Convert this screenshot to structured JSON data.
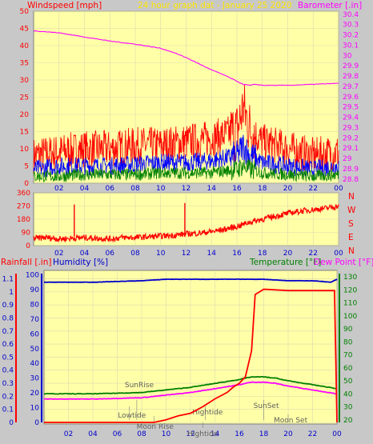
{
  "header": {
    "windspeed": "Windspeed [mph]",
    "date": "24 hour graph dat - January 25 2020",
    "barometer": "Barometer [.in]"
  },
  "mid": {
    "compass": [
      "N",
      "W",
      "S",
      "E",
      "N"
    ]
  },
  "bottom_header": {
    "rainfall": "Rainfall [.in]",
    "humidity": "Humidity [%]",
    "temperature": "Temperature [°F]",
    "dewpoint": "Dew Point [°F]"
  },
  "colors": {
    "background": "#c8c8c8",
    "plot": "#ffffa8",
    "windspeed": "#ff0000",
    "gust": "#0000ff",
    "avg": "#008000",
    "barometer": "#ff00ff",
    "humidity": "#0000cc",
    "temperature": "#008000",
    "dewpoint": "#ff00ff",
    "rain": "#ff0000"
  },
  "chart_data": [
    {
      "type": "line",
      "id": "wind",
      "xticks": [
        "02",
        "04",
        "06",
        "08",
        "10",
        "12",
        "14",
        "16",
        "18",
        "20",
        "22",
        "00"
      ],
      "left_ticks": [
        "50",
        "45",
        "40",
        "35",
        "30",
        "25",
        "20",
        "15",
        "10",
        "5",
        "0"
      ],
      "ylim": [
        0,
        50
      ],
      "right_ticks": [
        "30.4",
        "30.3",
        "30.2",
        "30.1",
        "30",
        "29.9",
        "29.8",
        "29.7",
        "29.6",
        "29.5",
        "29.4",
        "29.3",
        "29.2",
        "29.1",
        "29",
        "28.9",
        "28.8"
      ],
      "y2lim": [
        28.76,
        30.43
      ],
      "barometer": {
        "x": [
          0,
          2,
          4,
          6,
          8,
          10,
          11,
          12,
          13,
          14,
          15,
          16,
          16.5,
          17,
          17.5,
          18,
          20,
          22,
          24
        ],
        "y": [
          30.24,
          30.22,
          30.18,
          30.14,
          30.11,
          30.07,
          30.03,
          29.98,
          29.92,
          29.86,
          29.81,
          29.75,
          29.72,
          29.71,
          29.72,
          29.71,
          29.71,
          29.72,
          29.73
        ]
      },
      "series": [
        {
          "x": [
            0,
            2,
            4,
            6,
            8,
            10,
            12,
            14,
            16,
            16.5,
            17,
            18,
            20,
            22,
            24
          ],
          "y": [
            8,
            9,
            10,
            10,
            11,
            11,
            12,
            13,
            15,
            22,
            16,
            12,
            10,
            8,
            9
          ]
        },
        {
          "x": [
            0,
            2,
            4,
            6,
            8,
            10,
            12,
            14,
            16,
            16.5,
            17,
            18,
            20,
            22,
            24
          ],
          "y": [
            4,
            5,
            5,
            5,
            5.5,
            6,
            6,
            6.5,
            8,
            11,
            8,
            6,
            5,
            4,
            5
          ]
        },
        {
          "x": [
            0,
            2,
            4,
            6,
            8,
            10,
            12,
            14,
            16,
            16.5,
            17,
            18,
            20,
            22,
            24
          ],
          "y": [
            2,
            2,
            2.5,
            2.5,
            2.5,
            3,
            3,
            3,
            4,
            5,
            4,
            3,
            2.5,
            2,
            2.5
          ]
        }
      ]
    },
    {
      "type": "scatter",
      "id": "direction",
      "xticks": [
        "02",
        "04",
        "06",
        "08",
        "10",
        "12",
        "14",
        "16",
        "18",
        "20",
        "22",
        "00"
      ],
      "left_ticks": [
        "360",
        "270",
        "180",
        "90",
        "0"
      ],
      "ylim": [
        0,
        360
      ],
      "x": [
        0,
        1,
        2,
        3,
        4,
        5,
        6,
        7,
        8,
        9,
        10,
        11,
        12,
        13,
        14,
        15,
        16,
        17,
        18,
        19,
        20,
        21,
        22,
        23,
        24
      ],
      "y": [
        50,
        55,
        45,
        50,
        55,
        50,
        45,
        55,
        55,
        60,
        65,
        70,
        80,
        85,
        95,
        110,
        130,
        160,
        180,
        200,
        220,
        235,
        245,
        255,
        270
      ],
      "spikes": [
        {
          "x": 3.2,
          "y": 280
        },
        {
          "x": 11.9,
          "y": 290
        }
      ]
    },
    {
      "type": "line",
      "id": "temperature",
      "xticks": [
        "02",
        "04",
        "06",
        "08",
        "10",
        "12",
        "14",
        "16",
        "18",
        "20",
        "22",
        "00"
      ],
      "rain_ticks": [
        "1.1",
        "1",
        "0.9",
        "0.8",
        "0.7",
        "0.6",
        "0.5",
        "0.4",
        "0.3",
        "0.2",
        "0.1",
        "0"
      ],
      "ylim_rain": [
        0,
        1.14
      ],
      "humidity_ticks": [
        "100",
        "90",
        "80",
        "70",
        "60",
        "50",
        "40",
        "30",
        "20",
        "10",
        "0"
      ],
      "ylim_humidity": [
        0,
        103
      ],
      "temp_ticks": [
        "130",
        "120",
        "110",
        "100",
        "90",
        "80",
        "70",
        "60",
        "50",
        "40",
        "30",
        "20"
      ],
      "ylim_temp": [
        18,
        135
      ],
      "series": [
        {
          "name": "Humidity [%]",
          "x": [
            0,
            4,
            8,
            10,
            12,
            16,
            18,
            20,
            22,
            23.5,
            24
          ],
          "y": [
            95,
            95,
            96,
            97,
            97,
            97,
            97,
            96,
            96,
            95,
            97
          ]
        },
        {
          "name": "Temperature [°F]",
          "x": [
            0,
            4,
            8,
            10,
            12,
            14,
            16,
            17,
            18,
            19,
            20,
            22,
            24
          ],
          "y": [
            40,
            40,
            41,
            43,
            45,
            48,
            51,
            53,
            53,
            52,
            50,
            47,
            44
          ]
        },
        {
          "name": "Dew Point [°F]",
          "x": [
            0,
            4,
            8,
            10,
            12,
            14,
            16,
            17,
            18,
            19,
            20,
            22,
            24
          ],
          "y": [
            36,
            36,
            37,
            39,
            41,
            44,
            47,
            49,
            49,
            48,
            46,
            43,
            40
          ]
        },
        {
          "name": "Rainfall [.in]",
          "x": [
            0,
            9,
            10,
            11,
            12,
            13,
            14,
            15,
            15.5,
            16,
            16.5,
            17,
            17.3,
            18,
            20,
            22,
            23.8,
            24
          ],
          "y": [
            0,
            0,
            0.02,
            0.05,
            0.07,
            0.12,
            0.18,
            0.23,
            0.27,
            0.3,
            0.35,
            0.55,
            0.98,
            1.02,
            1.01,
            1.01,
            1.01,
            0
          ]
        }
      ],
      "annotations": {
        "sunrise": "SunRise",
        "lowtide": "Lowtide",
        "moonrise": "Moon Rise",
        "hightide1": "Hightide",
        "hightide2": "Hightide",
        "sunset": "SunSet",
        "moonset": "Moon Set"
      }
    }
  ]
}
